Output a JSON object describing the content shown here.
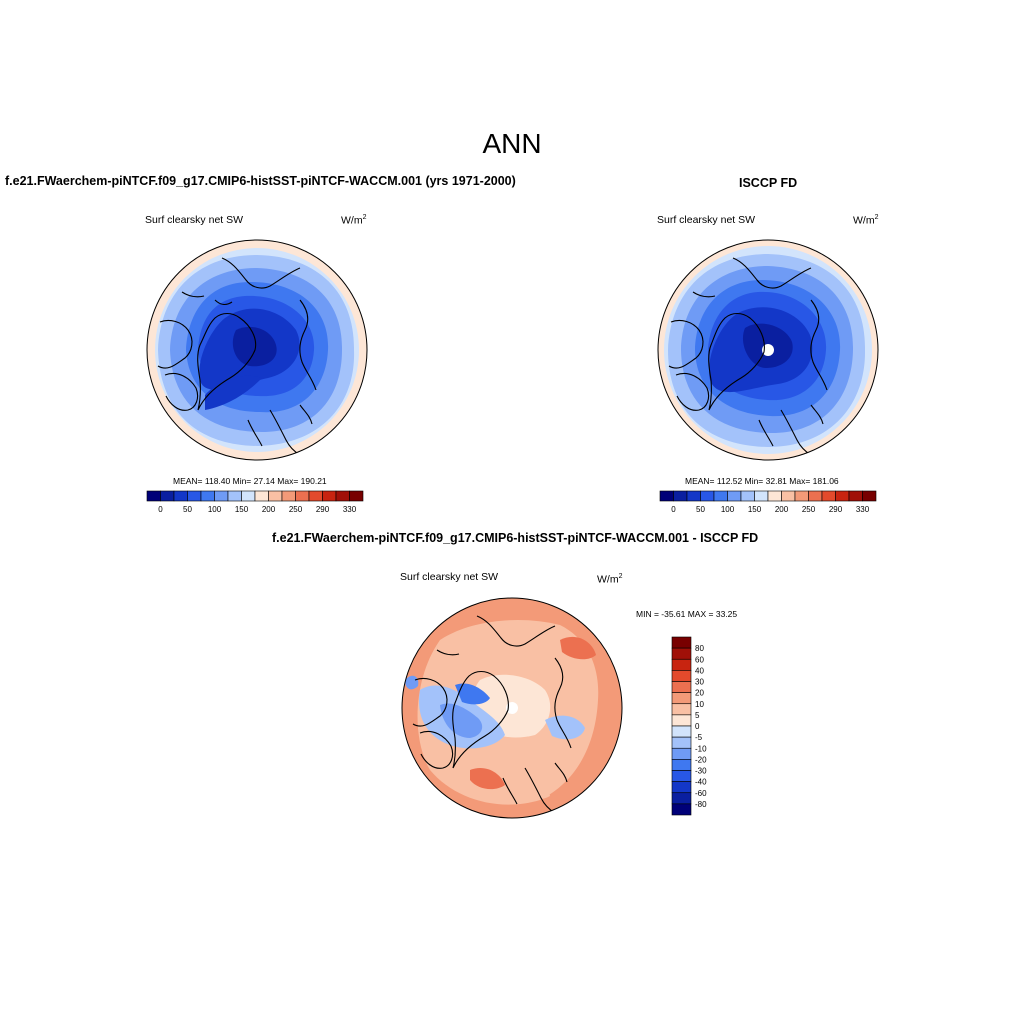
{
  "main_title": "ANN",
  "panels": [
    {
      "title": "f.e21.FWaerchem-piNTCF.f09_g17.CMIP6-histSST-piNTCF-WACCM.001 (yrs 1971-2000)",
      "variable": "Surf clearsky net SW",
      "units": "W/m",
      "units_exp": "2",
      "stats": "MEAN= 118.40  Min=  27.14  Max= 190.21"
    },
    {
      "title": "ISCCP FD",
      "variable": "Surf clearsky net SW",
      "units": "W/m",
      "units_exp": "2",
      "stats": "MEAN= 112.52  Min=  32.81  Max= 181.06"
    },
    {
      "title": "f.e21.FWaerchem-piNTCF.f09_g17.CMIP6-histSST-piNTCF-WACCM.001 - ISCCP FD",
      "variable": "Surf clearsky net SW",
      "units": "W/m",
      "units_exp": "2",
      "stats": "MIN = -35.61 MAX =  33.25"
    }
  ],
  "colorbar_main": {
    "labels": [
      "0",
      "50",
      "100",
      "150",
      "200",
      "250",
      "290",
      "330"
    ],
    "colors": [
      "#000078",
      "#0a1fa0",
      "#1337c8",
      "#2857e6",
      "#3f78f0",
      "#6f9bf5",
      "#a3c2fa",
      "#d2e4fc",
      "#fde6d6",
      "#f9c0a4",
      "#f39a78",
      "#ec7050",
      "#e34a2c",
      "#c82410",
      "#a01008",
      "#780000"
    ]
  },
  "colorbar_diff": {
    "labels": [
      "80",
      "60",
      "40",
      "30",
      "20",
      "10",
      "5",
      "0",
      "-5",
      "-10",
      "-20",
      "-30",
      "-40",
      "-60",
      "-80"
    ],
    "colors": [
      "#780000",
      "#a01008",
      "#c82410",
      "#e34a2c",
      "#ec7050",
      "#f39a78",
      "#f9c0a4",
      "#fde6d6",
      "#d2e4fc",
      "#a3c2fa",
      "#6f9bf5",
      "#3f78f0",
      "#2857e6",
      "#1337c8",
      "#0a1fa0",
      "#000078"
    ]
  }
}
